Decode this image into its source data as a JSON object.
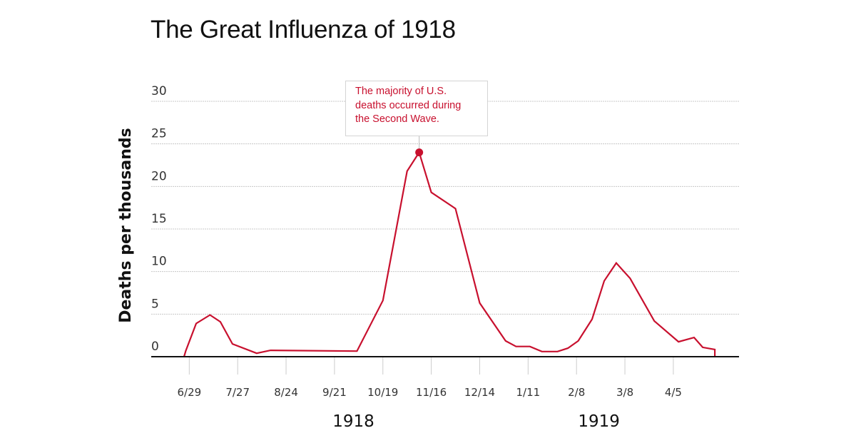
{
  "title": "The Great Influenza of 1918",
  "colors": {
    "line": "#c8102e",
    "annotation_text": "#c8102e",
    "grid": "#c8c8c8",
    "axis": "#111111"
  },
  "annotation": {
    "text_lines": [
      "The majority of U.S.",
      "deaths occurred during",
      "the Second Wave."
    ],
    "points_to": {
      "x": 133,
      "y": 24.0
    }
  },
  "chart_data": {
    "type": "line",
    "title": "The Great Influenza of 1918",
    "xlabel": "",
    "ylabel": "Deaths per thousands",
    "x_units": "days since 6/29/1918",
    "xlim": [
      -22,
      318
    ],
    "ylim": [
      0,
      30
    ],
    "grid": true,
    "yticks": [
      0,
      5,
      10,
      15,
      20,
      25,
      30
    ],
    "xticks": [
      {
        "x": 0,
        "label": "6/29"
      },
      {
        "x": 28,
        "label": "7/27"
      },
      {
        "x": 56,
        "label": "8/24"
      },
      {
        "x": 84,
        "label": "9/21"
      },
      {
        "x": 112,
        "label": "10/19"
      },
      {
        "x": 140,
        "label": "11/16"
      },
      {
        "x": 168,
        "label": "12/14"
      },
      {
        "x": 196,
        "label": "1/11"
      },
      {
        "x": 224,
        "label": "2/8"
      },
      {
        "x": 252,
        "label": "3/8"
      },
      {
        "x": 280,
        "label": "4/5"
      }
    ],
    "year_labels": [
      {
        "x": 95,
        "label": "1918"
      },
      {
        "x": 237,
        "label": "1919"
      }
    ],
    "series": [
      {
        "name": "Deaths per thousands",
        "x": [
          -3,
          -2,
          4,
          12,
          18,
          25,
          39,
          47,
          97,
          112,
          126,
          133,
          140,
          154,
          168,
          183,
          189,
          197,
          204,
          213,
          219,
          225,
          233,
          240,
          247,
          255,
          269,
          283,
          292,
          297,
          304,
          304
        ],
        "values": [
          0,
          0.7,
          3.9,
          4.9,
          4.1,
          1.5,
          0.4,
          0.75,
          0.65,
          6.6,
          21.8,
          24.0,
          19.3,
          17.4,
          6.3,
          1.85,
          1.2,
          1.2,
          0.6,
          0.6,
          1.0,
          1.85,
          4.4,
          8.9,
          11.0,
          9.2,
          4.2,
          1.75,
          2.25,
          1.1,
          0.85,
          0
        ]
      }
    ],
    "highlight_point": {
      "x": 133,
      "y": 24.0
    }
  }
}
